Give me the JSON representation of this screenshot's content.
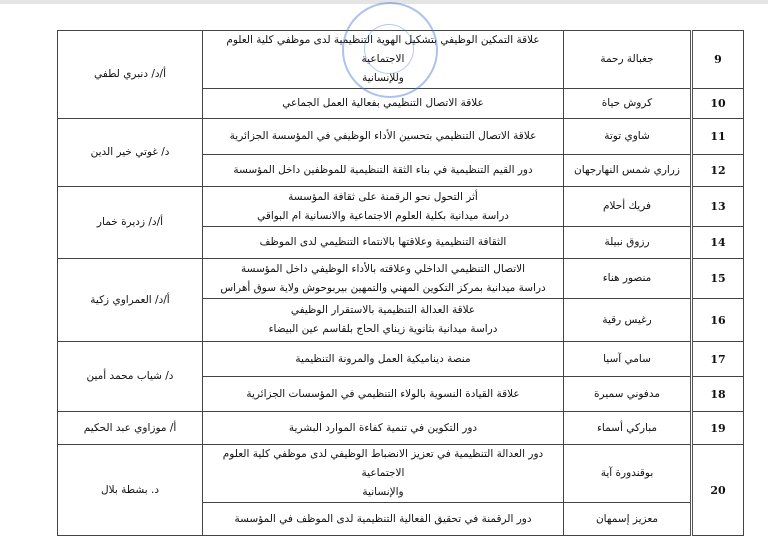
{
  "rows": [
    {
      "num": "9",
      "name": "جغبالة رحمة",
      "title": [
        "علاقة التمكين الوظيفي  بتشكيل الهوية التنظيمية لدى موظفي كلية العلوم الاجتماعية",
        "وللإنسانية"
      ]
    },
    {
      "num": "10",
      "name": "كروش حياة",
      "title": [
        "علاقة الاتصال التنظيمي بفعالية العمل الجماعي"
      ]
    },
    {
      "num": "11",
      "name": "شاوي توتة",
      "title": [
        "علاقة الاتصال التنظيمي بتحسين الأداء الوظيفي في المؤسسة الجزائرية"
      ]
    },
    {
      "num": "12",
      "name": "زراري شمس النهارجهان",
      "title": [
        "دور القيم التنظيمية في بناء الثقة التنظيمية للموظفين داخل المؤسسة"
      ]
    },
    {
      "num": "13",
      "name": "فريك أحلام",
      "title": [
        "أثر التحول نحو الرقمنة على ثقافة المؤسسة",
        "دراسة ميدانية بكلية العلوم الاجتماعية والانسانية ام البواقي"
      ]
    },
    {
      "num": "14",
      "name": "رزوق نبيلة",
      "title": [
        "الثقافة التنظيمية وعلاقتها بالانتماء التنظيمي لدى الموظف"
      ]
    },
    {
      "num": "15",
      "name": "منصور هناء",
      "title": [
        "الاتصال التنظيمي الداخلي وعلاقته بالأداء الوظيفي داخل المؤسسة",
        "دراسة ميدانية بمركز التكوين المهني والتمهين بيربوحوش ولاية سوق أهراس"
      ]
    },
    {
      "num": "16",
      "name": "رغيس رقية",
      "title": [
        "علاقة العدالة التنظيمية بالاستقرار الوظيفي",
        "دراسة ميدانية بثانوية زيناي الحاج بلقاسم عين البيضاء"
      ]
    },
    {
      "num": "17",
      "name": "سامي آسيا",
      "title": [
        "منصة ديناميكية العمل والمرونة التنظيمية"
      ]
    },
    {
      "num": "18",
      "name": "مدفوني سميرة",
      "title": [
        "علاقة القيادة النسوية بالولاء التنظيمي في المؤسسات الجزائرية"
      ]
    },
    {
      "num": "19",
      "name": "مباركي أسماء",
      "title": [
        "دور التكوين في تنمية كفاءة الموارد البشرية"
      ]
    },
    {
      "num": "20",
      "name": "بوقندورة آية",
      "title": [
        "دور العدالة التنظيمية في تعزيز الانضباط الوظيفي لدى موظفي كلية العلوم الاجتماعية",
        "والإنسانية"
      ]
    },
    {
      "num": "",
      "name": "معزيز إسمهان",
      "title": [
        "دور الرقمنة في تحقيق الفعالية التنظيمية لدى الموظف في المؤسسة"
      ]
    }
  ],
  "supervisors": [
    "أ/د/ دنبري لطفي",
    "د/ غوتي خير الدين",
    "أ/د/ زديرة خمار",
    "أ/د/ العمراوي زكية",
    "د/ شياب محمد أمين",
    "أ/ موزاوي عبد الحكيم",
    "د. بشطة بلال"
  ],
  "stamp_color": "#4678dc"
}
